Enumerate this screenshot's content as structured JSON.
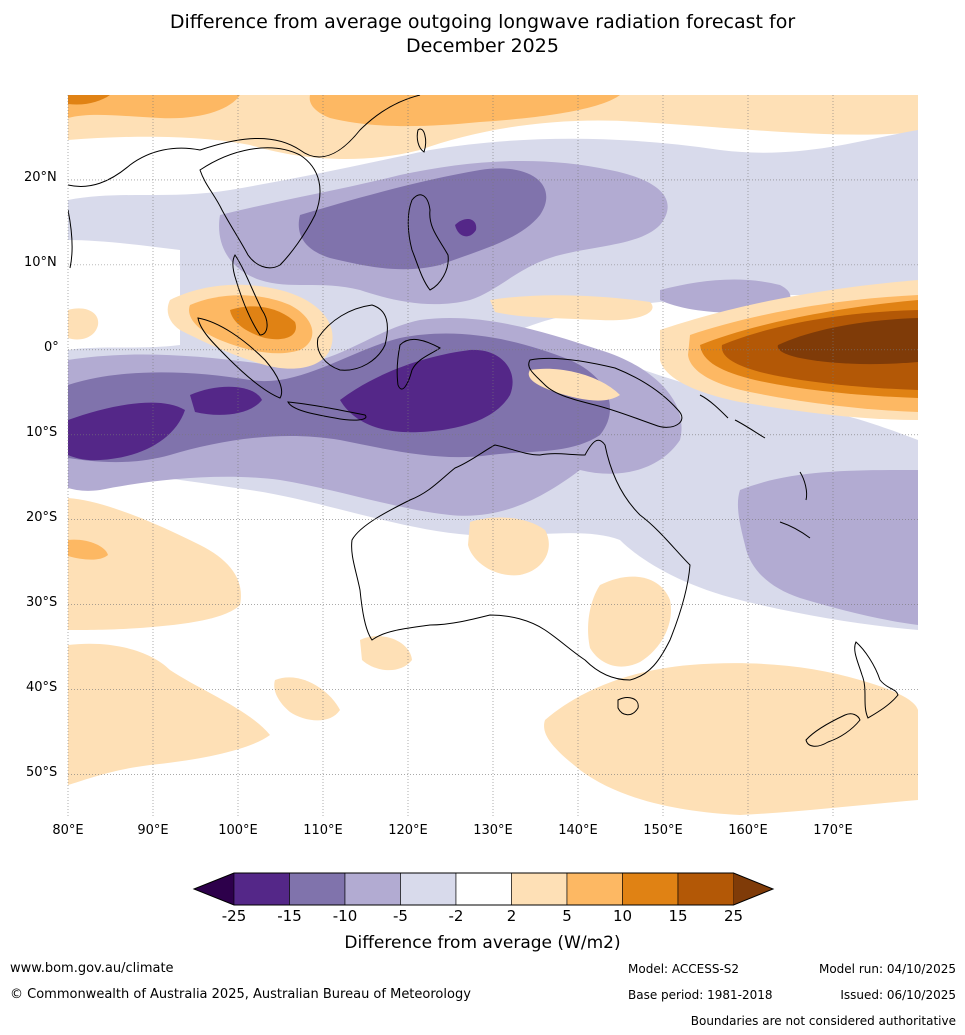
{
  "title": {
    "line1": "Difference from average outgoing longwave radiation forecast for",
    "line2": "December 2025"
  },
  "map": {
    "lon_range": [
      80,
      180
    ],
    "lat_range": [
      -55,
      30
    ],
    "lat_labels": [
      "20°N",
      "10°N",
      "0°",
      "10°S",
      "20°S",
      "30°S",
      "40°S",
      "50°S"
    ],
    "lon_labels": [
      "80°E",
      "90°E",
      "100°E",
      "110°E",
      "120°E",
      "130°E",
      "140°E",
      "150°E",
      "160°E",
      "170°E"
    ]
  },
  "colorbar": {
    "title": "Difference from average (W/m2)",
    "ticks": [
      "-25",
      "-15",
      "-10",
      "-5",
      "-2",
      "2",
      "5",
      "10",
      "15",
      "25"
    ],
    "colors": {
      "lt_-25": "#2d004b",
      "-25_-15": "#542788",
      "-15_-10": "#8073ac",
      "-10_-5": "#b2abd2",
      "-5_-2": "#d8daeb",
      "-2_2": "#ffffff",
      "2_5": "#fee0b6",
      "5_10": "#fdb863",
      "10_15": "#e08214",
      "15_25": "#b35806",
      "gt_25": "#7f3b08"
    }
  },
  "footer": {
    "website": "www.bom.gov.au/climate",
    "copyright": "© Commonwealth of Australia 2025, Australian Bureau of Meteorology",
    "model": "Model: ACCESS-S2",
    "base_period": "Base period: 1981-2018",
    "model_run": "Model run: 04/10/2025",
    "issued": "Issued: 06/10/2025",
    "disclaimer": "Boundaries are not considered authoritative"
  }
}
